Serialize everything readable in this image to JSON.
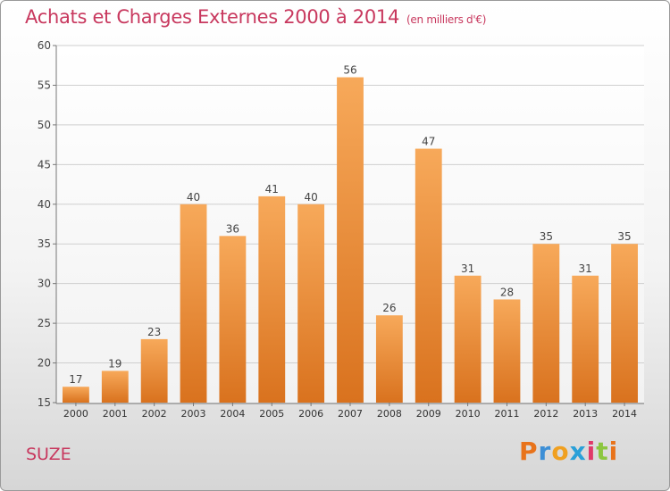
{
  "header": {
    "title": "Achats et Charges Externes 2000 à 2014",
    "unit_note": "(en milliers d'€)"
  },
  "footer": {
    "place": "SUZE",
    "logo_letters": [
      "P",
      "r",
      "o",
      "x",
      "i",
      "t",
      "i"
    ],
    "logo_colors": [
      "#e8731b",
      "#3d8fd6",
      "#f0a020",
      "#2aa0d8",
      "#e03a6a",
      "#8cc63f",
      "#e8731b"
    ]
  },
  "colors": {
    "bar_top": "#f7a95a",
    "bar_bottom": "#d9721e",
    "title": "#c8385e",
    "grid": "#cfcfcf",
    "axis": "#777777"
  },
  "chart_data": {
    "type": "bar",
    "categories": [
      "2000",
      "2001",
      "2002",
      "2003",
      "2004",
      "2005",
      "2006",
      "2007",
      "2008",
      "2009",
      "2010",
      "2011",
      "2012",
      "2013",
      "2014"
    ],
    "values": [
      17,
      19,
      23,
      40,
      36,
      41,
      40,
      56,
      26,
      47,
      31,
      28,
      35,
      31,
      35
    ],
    "data_labels": [
      "17",
      "19",
      "23",
      "40",
      "36",
      "41",
      "40",
      "56",
      "26",
      "47",
      "31",
      "28",
      "35",
      "31",
      "35"
    ],
    "ylim": [
      15,
      60
    ],
    "yticks": [
      15,
      20,
      25,
      30,
      35,
      40,
      45,
      50,
      55,
      60
    ],
    "ytick_labels": [
      "15",
      "20",
      "25",
      "30",
      "35",
      "40",
      "45",
      "50",
      "55",
      "60"
    ],
    "grid": true,
    "legend": "none"
  }
}
